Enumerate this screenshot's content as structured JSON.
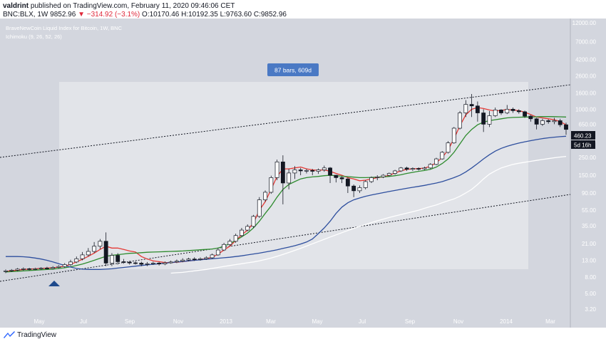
{
  "header": {
    "author": "valdrint",
    "published": "published on TradingView.com, February 11, 2020 09:46:06 CET",
    "symbol_line": {
      "symbol": "BNC:BLX, 1W",
      "last": "9852.96",
      "change": "▼ −314.92 (−3.1%)",
      "ohlc": "O:10170.46 H:10192.35 L:9763.60 C:9852.96"
    }
  },
  "chart_labels": {
    "title": "BraveNewCoin Liquid Index for Bitcoin, 1W, BNC",
    "indicator": "Ichimoku (9, 26, 52, 26)",
    "range_box": "87 bars, 609d",
    "price_label": "460.23",
    "countdown": "5d 16h"
  },
  "brand": "TradingView",
  "colors": {
    "background": "#d3d6de",
    "range_fill": "#e2e4e9",
    "candle_up": "#ffffff",
    "candle_down": "#131722",
    "tenkan": "#e53935",
    "kijun": "#2e8b2e",
    "span_b": "#2e4f9e",
    "lagging": "#ffffff",
    "marker": "#1e4a8c",
    "range_label_bg": "#4a79c4"
  },
  "chart_data": {
    "type": "candlestick",
    "y_scale": "log",
    "yticks": [
      "12000.00",
      "7000.00",
      "4200.00",
      "2600.00",
      "1600.00",
      "1000.00",
      "650.00",
      "400.00",
      "250.00",
      "150.00",
      "90.00",
      "55.00",
      "35.00",
      "21.00",
      "13.00",
      "8.00",
      "5.00",
      "3.20"
    ],
    "xticks": [
      "May",
      "Jul",
      "Sep",
      "Nov",
      "2013",
      "Mar",
      "May",
      "Jul",
      "Sep",
      "Nov",
      "2014",
      "Mar"
    ],
    "candles": [
      [
        9.4,
        9.6,
        9.0,
        10.0
      ],
      [
        9.6,
        9.8,
        9.3,
        10.1
      ],
      [
        9.8,
        10.1,
        9.5,
        10.4
      ],
      [
        10.1,
        10.2,
        9.7,
        10.6
      ],
      [
        10.2,
        10.1,
        9.7,
        10.5
      ],
      [
        10.1,
        10.2,
        9.8,
        10.5
      ],
      [
        10.2,
        10.4,
        9.9,
        10.7
      ],
      [
        10.4,
        10.3,
        10.0,
        10.8
      ],
      [
        10.3,
        10.6,
        10.0,
        11.0
      ],
      [
        10.6,
        10.9,
        10.3,
        11.3
      ],
      [
        10.9,
        11.5,
        10.5,
        12.0
      ],
      [
        11.5,
        12.4,
        11.0,
        13.2
      ],
      [
        12.4,
        13.6,
        12.0,
        14.5
      ],
      [
        13.6,
        15.2,
        13.0,
        16.5
      ],
      [
        15.2,
        16.8,
        14.5,
        18.5
      ],
      [
        16.8,
        19.5,
        16.0,
        22.0
      ],
      [
        19.5,
        22.5,
        18.0,
        24.0
      ],
      [
        22.5,
        12.0,
        11.0,
        29.0
      ],
      [
        12.0,
        15.0,
        11.0,
        16.0
      ],
      [
        15.0,
        12.5,
        11.5,
        16.0
      ],
      [
        12.5,
        12.3,
        11.8,
        13.5
      ],
      [
        12.3,
        12.1,
        11.5,
        12.8
      ],
      [
        12.1,
        12.0,
        11.5,
        12.6
      ],
      [
        12.0,
        11.6,
        11.0,
        12.5
      ],
      [
        11.6,
        11.8,
        11.0,
        12.4
      ],
      [
        11.8,
        12.0,
        11.4,
        12.5
      ],
      [
        12.0,
        11.7,
        11.2,
        12.4
      ],
      [
        11.7,
        12.1,
        11.3,
        12.6
      ],
      [
        12.1,
        12.4,
        11.8,
        12.9
      ],
      [
        12.4,
        12.7,
        12.0,
        13.3
      ],
      [
        12.7,
        13.1,
        12.3,
        13.8
      ],
      [
        13.1,
        13.5,
        12.6,
        14.0
      ],
      [
        13.5,
        13.3,
        12.8,
        14.2
      ],
      [
        13.3,
        13.6,
        12.9,
        14.1
      ],
      [
        13.6,
        14.0,
        13.2,
        14.6
      ],
      [
        14.0,
        15.2,
        13.6,
        15.8
      ],
      [
        15.2,
        17.5,
        14.8,
        18.5
      ],
      [
        17.5,
        20.5,
        17.0,
        21.5
      ],
      [
        20.5,
        22.5,
        19.5,
        24.0
      ],
      [
        22.5,
        26.5,
        21.5,
        28.0
      ],
      [
        26.5,
        31.0,
        25.5,
        33.0
      ],
      [
        31.0,
        34.5,
        30.0,
        36.5
      ],
      [
        34.5,
        46.0,
        33.0,
        48.0
      ],
      [
        46.0,
        74.0,
        44.0,
        80.0
      ],
      [
        74.0,
        92.0,
        70.0,
        97.0
      ],
      [
        92.0,
        140.0,
        88.0,
        148.0
      ],
      [
        140.0,
        220.0,
        130.0,
        235.0
      ],
      [
        220.0,
        120.0,
        65.0,
        266.0
      ],
      [
        120.0,
        160.0,
        100.0,
        180.0
      ],
      [
        160.0,
        175.0,
        135.0,
        195.0
      ],
      [
        175.0,
        170.0,
        150.0,
        185.0
      ],
      [
        170.0,
        172.0,
        158.0,
        180.0
      ],
      [
        172.0,
        168.0,
        150.0,
        180.0
      ],
      [
        168.0,
        175.0,
        156.0,
        182.0
      ],
      [
        175.0,
        185.0,
        166.0,
        198.0
      ],
      [
        185.0,
        150.0,
        120.0,
        190.0
      ],
      [
        150.0,
        140.0,
        122.0,
        152.0
      ],
      [
        140.0,
        135.0,
        120.0,
        145.0
      ],
      [
        135.0,
        110.0,
        90.0,
        140.0
      ],
      [
        110.0,
        96.0,
        80.0,
        115.0
      ],
      [
        96.0,
        105.0,
        90.0,
        112.0
      ],
      [
        105.0,
        125.0,
        100.0,
        130.0
      ],
      [
        125.0,
        140.0,
        120.0,
        145.0
      ],
      [
        140.0,
        143.0,
        130.0,
        150.0
      ],
      [
        143.0,
        150.0,
        138.0,
        155.0
      ],
      [
        150.0,
        158.0,
        145.0,
        162.0
      ],
      [
        158.0,
        170.0,
        152.0,
        175.0
      ],
      [
        170.0,
        185.0,
        165.0,
        190.0
      ],
      [
        185.0,
        178.0,
        170.0,
        192.0
      ],
      [
        178.0,
        182.0,
        170.0,
        188.0
      ],
      [
        182.0,
        180.0,
        172.0,
        188.0
      ],
      [
        180.0,
        185.0,
        175.0,
        192.0
      ],
      [
        185.0,
        205.0,
        180.0,
        212.0
      ],
      [
        205.0,
        240.0,
        200.0,
        248.0
      ],
      [
        240.0,
        290.0,
        235.0,
        300.0
      ],
      [
        290.0,
        380.0,
        280.0,
        400.0
      ],
      [
        380.0,
        580.0,
        370.0,
        600.0
      ],
      [
        580.0,
        900.0,
        560.0,
        950.0
      ],
      [
        900.0,
        1150.0,
        800.0,
        1300.0
      ],
      [
        1150.0,
        1100.0,
        800.0,
        1550.0
      ],
      [
        1100.0,
        900.0,
        700.0,
        1250.0
      ],
      [
        900.0,
        650.0,
        520.0,
        1000.0
      ],
      [
        650.0,
        830.0,
        600.0,
        950.0
      ],
      [
        830.0,
        980.0,
        800.0,
        1050.0
      ],
      [
        980.0,
        900.0,
        850.0,
        1000.0
      ],
      [
        900.0,
        1000.0,
        870.0,
        1130.0
      ],
      [
        1000.0,
        960.0,
        900.0,
        1050.0
      ],
      [
        960.0,
        930.0,
        880.0,
        1000.0
      ],
      [
        930.0,
        820.0,
        780.0,
        960.0
      ],
      [
        820.0,
        760.0,
        700.0,
        850.0
      ],
      [
        760.0,
        650.0,
        560.0,
        780.0
      ],
      [
        650.0,
        720.0,
        620.0,
        760.0
      ],
      [
        720.0,
        700.0,
        660.0,
        750.0
      ],
      [
        700.0,
        720.0,
        650.0,
        780.0
      ],
      [
        720.0,
        640.0,
        600.0,
        760.0
      ],
      [
        640.0,
        560.0,
        480.0,
        680.0
      ]
    ],
    "series": [
      {
        "name": "Tenkan",
        "values": [
          9.5,
          9.6,
          9.8,
          10.0,
          10.1,
          10.2,
          10.3,
          10.4,
          10.5,
          10.7,
          11.0,
          11.6,
          12.4,
          13.4,
          14.6,
          16.0,
          17.8,
          19.5,
          18.5,
          18.5,
          17.8,
          17.0,
          16.5,
          14.5,
          13.5,
          12.8,
          12.5,
          12.2,
          12.2,
          12.3,
          12.5,
          12.8,
          13.0,
          13.3,
          13.6,
          14.2,
          15.5,
          17.5,
          19.5,
          23.0,
          27.0,
          31.0,
          38.0,
          55.0,
          70.0,
          100.0,
          145.0,
          180.0,
          180.0,
          185.0,
          190.0,
          180.0,
          175.0,
          173.0,
          175.0,
          168.0,
          158.0,
          150.0,
          140.0,
          135.0,
          128.0,
          130.0,
          135.0,
          140.0,
          143.0,
          150.0,
          160.0,
          170.0,
          178.0,
          180.0,
          182.0,
          184.0,
          195.0,
          215.0,
          250.0,
          310.0,
          430.0,
          620.0,
          850.0,
          1000.0,
          1050.0,
          1020.0,
          980.0,
          950.0,
          970.0,
          990.0,
          980.0,
          960.0,
          920.0,
          860.0,
          800.0,
          780.0,
          760.0,
          740.0,
          700.0,
          640.0
        ]
      },
      {
        "name": "Kijun",
        "values": [
          9.3,
          9.4,
          9.5,
          9.6,
          9.7,
          9.8,
          9.9,
          10.0,
          10.1,
          10.3,
          10.5,
          10.8,
          11.2,
          11.7,
          12.3,
          13.0,
          13.8,
          14.6,
          15.0,
          15.3,
          15.6,
          15.9,
          16.0,
          16.2,
          16.4,
          16.5,
          16.6,
          16.7,
          16.8,
          16.9,
          17.0,
          17.2,
          17.4,
          17.6,
          17.8,
          18.0,
          18.5,
          19.5,
          21.0,
          23.0,
          25.5,
          28.5,
          33.0,
          40.0,
          50.0,
          62.0,
          80.0,
          100.0,
          115.0,
          125.0,
          135.0,
          140.0,
          143.0,
          145.0,
          148.0,
          150.0,
          148.0,
          146.0,
          144.0,
          142.0,
          140.0,
          140.0,
          141.0,
          142.0,
          143.0,
          145.0,
          148.0,
          152.0,
          158.0,
          163.0,
          168.0,
          172.0,
          178.0,
          190.0,
          210.0,
          240.0,
          290.0,
          370.0,
          470.0,
          560.0,
          640.0,
          690.0,
          720.0,
          740.0,
          760.0,
          780.0,
          790.0,
          795.0,
          800.0,
          800.0,
          805.0,
          810.0,
          810.0,
          808.0,
          805.0,
          800.0
        ]
      },
      {
        "name": "Span B",
        "values": [
          14.5,
          14.5,
          14.5,
          14.4,
          14.2,
          13.9,
          13.5,
          13.0,
          12.4,
          11.8,
          11.2,
          10.7,
          10.3,
          10.1,
          10.0,
          10.0,
          10.0,
          10.1,
          10.2,
          10.4,
          10.6,
          10.8,
          11.0,
          11.2,
          11.4,
          11.6,
          11.8,
          12.0,
          12.2,
          12.4,
          12.6,
          12.8,
          13.0,
          13.2,
          13.4,
          13.6,
          13.8,
          14.0,
          14.2,
          14.5,
          14.8,
          15.2,
          15.6,
          16.0,
          16.5,
          17.0,
          17.6,
          18.3,
          19.0,
          19.8,
          20.8,
          22.0,
          24.0,
          28.0,
          33.0,
          40.0,
          50.0,
          60.0,
          68.0,
          74.0,
          78.0,
          82.0,
          85.0,
          88.0,
          91.0,
          94.0,
          97.0,
          100.0,
          103.0,
          106.0,
          109.0,
          112.0,
          116.0,
          120.0,
          125.0,
          132.0,
          140.0,
          150.0,
          165.0,
          185.0,
          210.0,
          240.0,
          270.0,
          300.0,
          325.0,
          345.0,
          362.0,
          378.0,
          392.0,
          405.0,
          418.0,
          430.0,
          440.0,
          448.0,
          455.0,
          460.0
        ]
      },
      {
        "name": "Chikou",
        "values": [
          null,
          null,
          null,
          null,
          null,
          null,
          null,
          null,
          null,
          null,
          null,
          null,
          null,
          null,
          null,
          null,
          null,
          null,
          null,
          null,
          null,
          null,
          null,
          null,
          null,
          null,
          null,
          null,
          9.0,
          9.1,
          9.2,
          9.4,
          9.6,
          9.8,
          10.0,
          10.3,
          10.6,
          10.9,
          11.2,
          11.5,
          11.8,
          12.1,
          12.4,
          12.8,
          13.3,
          13.9,
          14.6,
          15.4,
          16.3,
          17.3,
          18.4,
          19.6,
          20.9,
          22.3,
          23.8,
          25.4,
          27.0,
          28.8,
          30.6,
          32.5,
          34.5,
          36.5,
          38.5,
          40.5,
          42.5,
          44.5,
          46.5,
          48.5,
          50.5,
          52.5,
          55.0,
          58.0,
          61.0,
          64.0,
          68.0,
          72.0,
          76.0,
          82.0,
          90.0,
          100.0,
          115.0,
          135.0,
          155.0,
          170.0,
          185.0,
          195.0,
          205.0,
          212.0,
          218.0,
          224.0,
          230.0,
          236.0,
          242.0,
          248.0,
          253.0,
          258.0
        ]
      }
    ]
  }
}
